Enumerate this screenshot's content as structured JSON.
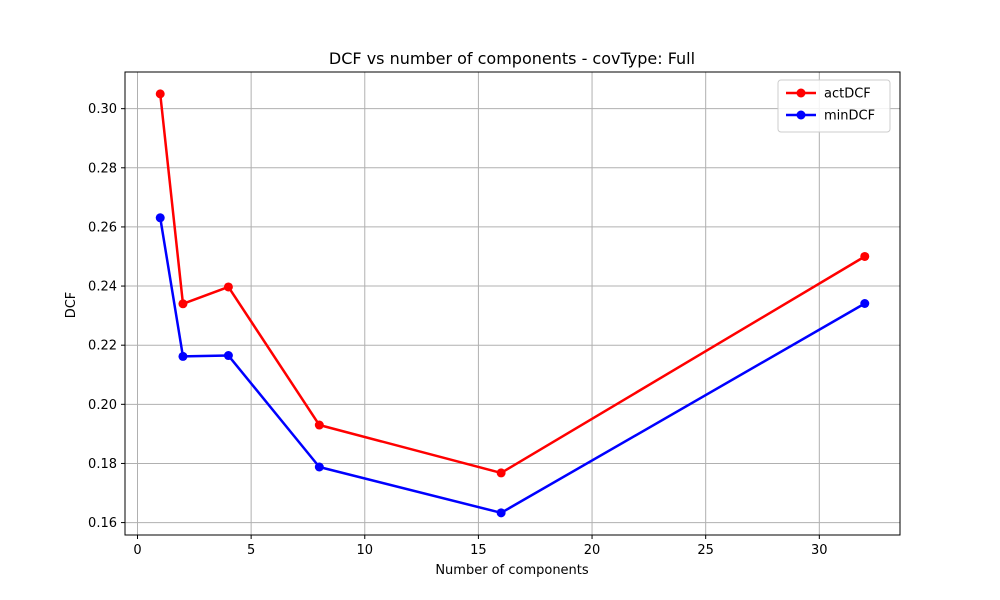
{
  "chart_data": {
    "type": "line",
    "title": "DCF vs number of components - covType: Full",
    "xlabel": "Number of components",
    "ylabel": "DCF",
    "x": [
      1,
      2,
      4,
      8,
      16,
      32
    ],
    "xlim": [
      -0.55,
      33.55
    ],
    "ylim": [
      0.1558,
      0.3124
    ],
    "xticks": [
      0,
      5,
      10,
      15,
      20,
      25,
      30
    ],
    "yticks": [
      0.16,
      0.18,
      0.2,
      0.22,
      0.24,
      0.26,
      0.28,
      0.3
    ],
    "xtick_labels": [
      "0",
      "5",
      "10",
      "15",
      "20",
      "25",
      "30"
    ],
    "ytick_labels": [
      "0.16",
      "0.18",
      "0.20",
      "0.22",
      "0.24",
      "0.26",
      "0.28",
      "0.30"
    ],
    "grid": true,
    "legend_position": "top-right",
    "series": [
      {
        "name": "actDCF",
        "color": "#ff0000",
        "values": [
          0.305,
          0.234,
          0.2397,
          0.193,
          0.1768,
          0.25
        ]
      },
      {
        "name": "minDCF",
        "color": "#0000ff",
        "values": [
          0.2631,
          0.2162,
          0.2165,
          0.1788,
          0.1633,
          0.2341
        ]
      }
    ]
  }
}
